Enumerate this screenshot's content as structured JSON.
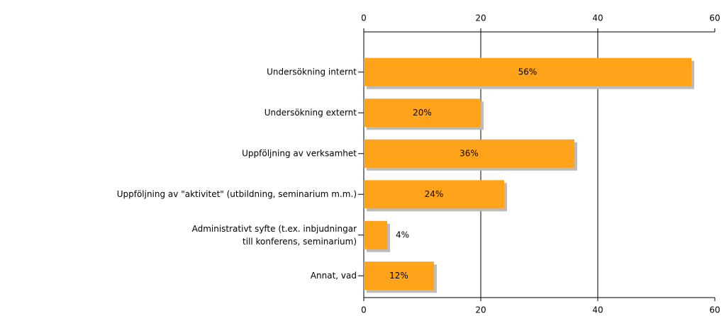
{
  "chart_data": {
    "type": "bar",
    "orientation": "horizontal",
    "categories": [
      "Undersökning internt",
      "Undersökning externt",
      "Uppföljning av verksamhet",
      "Uppföljning av \"aktivitet\" (utbildning, seminarium m.m.)",
      "Administrativt syfte (t.ex. inbjudningar\ntill konferens, seminarium)",
      "Annat, vad"
    ],
    "values": [
      56,
      20,
      36,
      24,
      4,
      12
    ],
    "value_labels": [
      "56%",
      "20%",
      "36%",
      "24%",
      "4%",
      "12%"
    ],
    "color": "#ffa31a",
    "xlim": [
      0,
      60
    ],
    "xticks": [
      0,
      20,
      40,
      60
    ],
    "grid": true
  }
}
